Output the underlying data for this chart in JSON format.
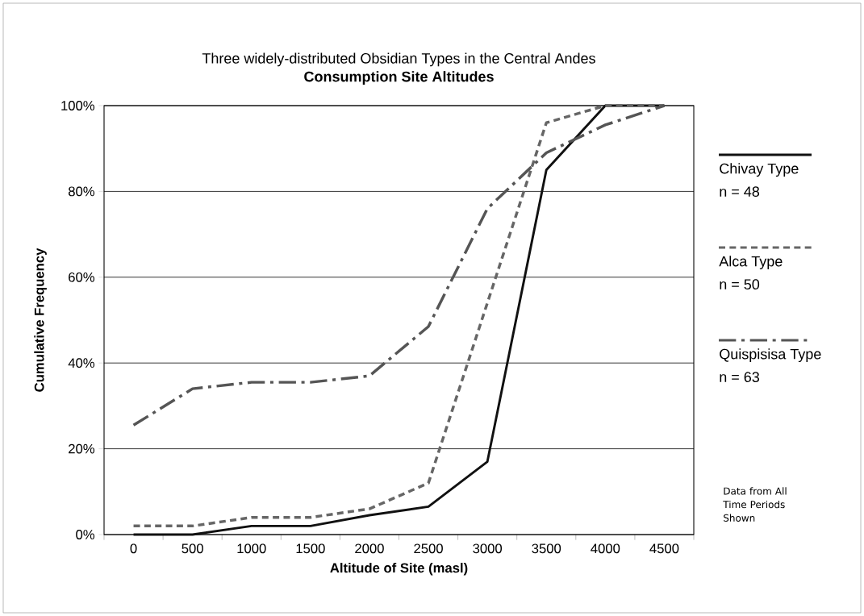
{
  "chart_data": {
    "type": "line",
    "title": "Three widely-distributed Obsidian Types in the Central Andes",
    "subtitle": "Consumption Site Altitudes",
    "xlabel": "Altitude of Site (masl)",
    "ylabel": "Cumulative Frequency",
    "categories": [
      "0",
      "500",
      "1000",
      "1500",
      "2000",
      "2500",
      "3000",
      "3500",
      "4000",
      "4500"
    ],
    "series": [
      {
        "name": "Chivay Type",
        "color": "#111111",
        "line_style": "solid",
        "values": [
          0,
          0,
          2,
          2,
          4.5,
          6.5,
          17,
          85,
          100,
          100
        ]
      },
      {
        "name": "Alca Type",
        "color": "#666666",
        "line_style": "dashed",
        "values": [
          2,
          2,
          4,
          4,
          6,
          12,
          54,
          96,
          100,
          100
        ]
      },
      {
        "name": "Quispisisa Type",
        "color": "#555555",
        "line_style": "dashdot",
        "values": [
          25.5,
          34,
          35.5,
          35.5,
          37,
          48.5,
          76,
          89,
          95.5,
          100
        ]
      }
    ],
    "ylim": [
      0,
      100
    ],
    "yticks": [
      {
        "value": 0,
        "label": "0%"
      },
      {
        "value": 20,
        "label": "20%"
      },
      {
        "value": 40,
        "label": "40%"
      },
      {
        "value": 60,
        "label": "60%"
      },
      {
        "value": 80,
        "label": "80%"
      },
      {
        "value": 100,
        "label": "100%"
      }
    ],
    "grid": "y",
    "legend": "right",
    "marker": "none",
    "annotations": [
      "n = 48",
      "n = 50",
      "n = 63",
      "Data from All Time Periods Shown"
    ]
  }
}
